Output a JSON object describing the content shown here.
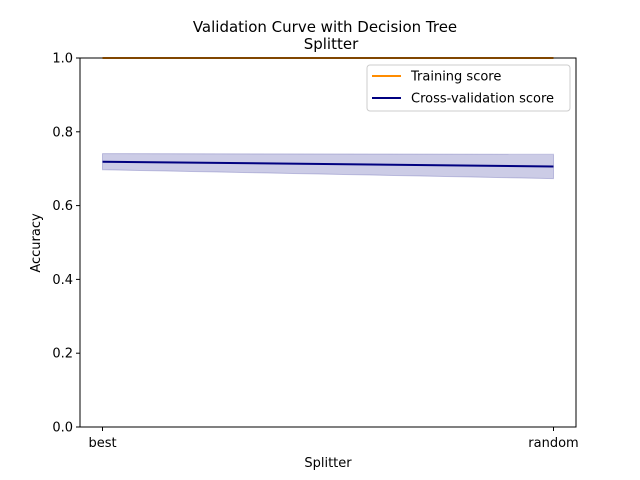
{
  "chart_data": {
    "type": "line",
    "title_line1": "Validation Curve with Decision Tree",
    "title_line2": "Splitter",
    "xlabel": "Splitter",
    "ylabel": "Accuracy",
    "categories": [
      "best",
      "random"
    ],
    "ylim": [
      0.0,
      1.0
    ],
    "yticks": [
      "0.0",
      "0.2",
      "0.4",
      "0.6",
      "0.8",
      "1.0"
    ],
    "grid": false,
    "legend_position": "top-right",
    "series": [
      {
        "name": "Training score",
        "color": "#ff8c00",
        "fill_color": "#ff8c00",
        "values": [
          1.0,
          1.0
        ],
        "lower": [
          1.0,
          1.0
        ],
        "upper": [
          1.0,
          1.0
        ]
      },
      {
        "name": "Cross-validation score",
        "color": "#000080",
        "fill_color": "#000080",
        "values": [
          0.719,
          0.706
        ],
        "lower": [
          0.697,
          0.673
        ],
        "upper": [
          0.741,
          0.739
        ]
      }
    ]
  }
}
